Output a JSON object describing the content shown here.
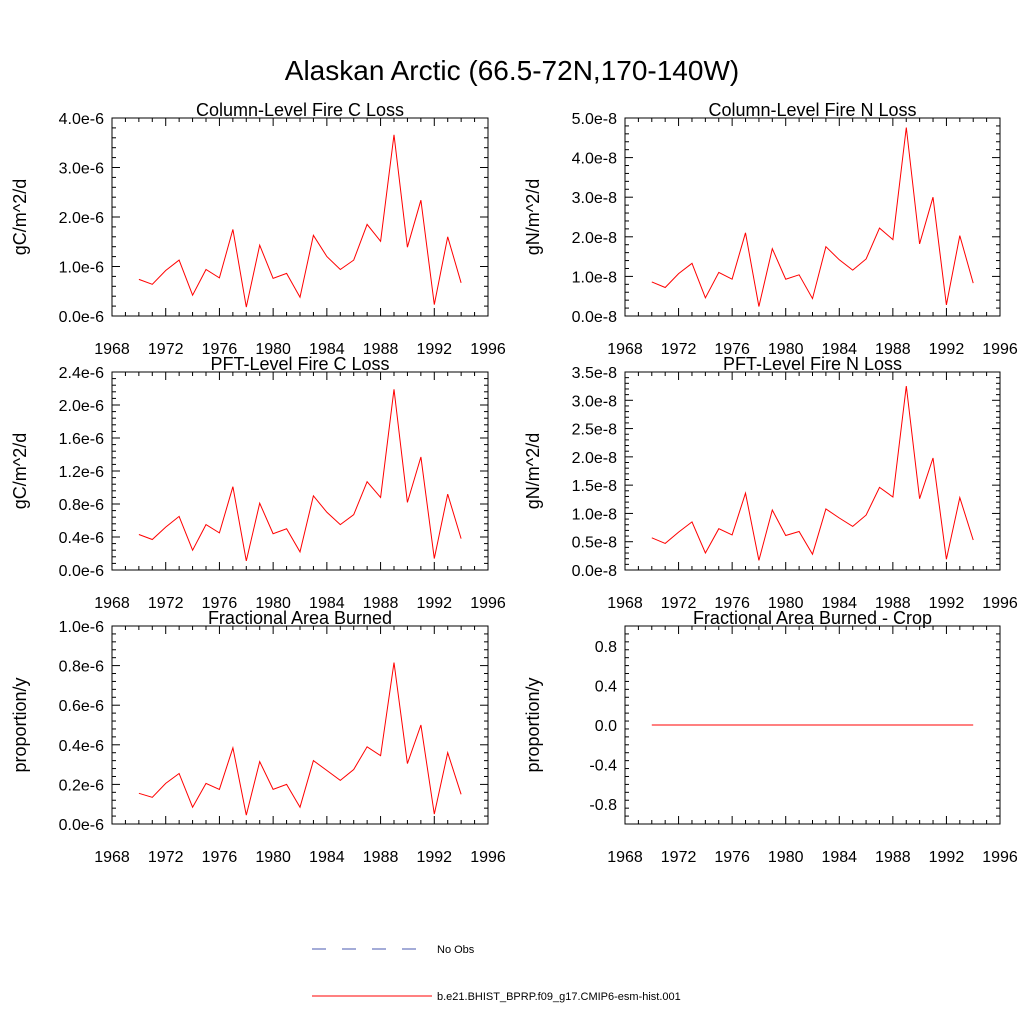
{
  "figure": {
    "title": "Alaskan Arctic (66.5-72N,170-140W)"
  },
  "colors": {
    "model_line": "#ff0000",
    "obs_line": "#4a5ab0",
    "axis": "#000000"
  },
  "chart_data": [
    {
      "type": "line",
      "title": "Column-Level Fire C Loss",
      "ylabel": "gC/m^2/d",
      "xlabel": "",
      "xlim": [
        1968,
        1996
      ],
      "ylim": [
        0,
        4e-06
      ],
      "xticks": [
        1968,
        1972,
        1976,
        1980,
        1984,
        1988,
        1992,
        1996
      ],
      "yticks": [
        0,
        1e-06,
        2e-06,
        3e-06,
        4e-06
      ],
      "ytick_labels": [
        "0.0e-6",
        "1.0e-6",
        "2.0e-6",
        "3.0e-6",
        "4.0e-6"
      ],
      "series": [
        {
          "name": "b.e21.BHIST_BPRP.f09_g17.CMIP6-esm-hist.001",
          "x": [
            1970,
            1971,
            1972,
            1973,
            1974,
            1975,
            1976,
            1977,
            1978,
            1979,
            1980,
            1981,
            1982,
            1983,
            1984,
            1985,
            1986,
            1987,
            1988,
            1989,
            1990,
            1991,
            1992,
            1993,
            1994
          ],
          "y": [
            7.4e-07,
            6.4e-07,
            9.2e-07,
            1.13e-06,
            4.2e-07,
            9.4e-07,
            7.7e-07,
            1.75e-06,
            1.8e-07,
            1.43e-06,
            7.6e-07,
            8.6e-07,
            3.8e-07,
            1.63e-06,
            1.2e-06,
            9.4e-07,
            1.13e-06,
            1.85e-06,
            1.51e-06,
            3.66e-06,
            1.39e-06,
            2.34e-06,
            2.3e-07,
            1.6e-06,
            6.7e-07
          ]
        }
      ]
    },
    {
      "type": "line",
      "title": "Column-Level Fire N Loss",
      "ylabel": "gN/m^2/d",
      "xlabel": "",
      "xlim": [
        1968,
        1996
      ],
      "ylim": [
        0,
        5e-08
      ],
      "xticks": [
        1968,
        1972,
        1976,
        1980,
        1984,
        1988,
        1992,
        1996
      ],
      "yticks": [
        0,
        1e-08,
        2e-08,
        3e-08,
        4e-08,
        5e-08
      ],
      "ytick_labels": [
        "0.0e-8",
        "1.0e-8",
        "2.0e-8",
        "3.0e-8",
        "4.0e-8",
        "5.0e-8"
      ],
      "series": [
        {
          "name": "b.e21.BHIST_BPRP.f09_g17.CMIP6-esm-hist.001",
          "x": [
            1970,
            1971,
            1972,
            1973,
            1974,
            1975,
            1976,
            1977,
            1978,
            1979,
            1980,
            1981,
            1982,
            1983,
            1984,
            1985,
            1986,
            1987,
            1988,
            1989,
            1990,
            1991,
            1992,
            1993,
            1994
          ],
          "y": [
            8.6e-09,
            7.2e-09,
            1.07e-08,
            1.33e-08,
            4.6e-09,
            1.1e-08,
            9.3e-09,
            2.1e-08,
            2.4e-09,
            1.7e-08,
            9.3e-09,
            1.04e-08,
            4.4e-09,
            1.75e-08,
            1.42e-08,
            1.16e-08,
            1.44e-08,
            2.22e-08,
            1.93e-08,
            4.76e-08,
            1.82e-08,
            3e-08,
            2.8e-09,
            2.03e-08,
            8.3e-09
          ]
        }
      ]
    },
    {
      "type": "line",
      "title": "PFT-Level Fire C Loss",
      "ylabel": "gC/m^2/d",
      "xlabel": "",
      "xlim": [
        1968,
        1996
      ],
      "ylim": [
        0,
        2.4e-06
      ],
      "xticks": [
        1968,
        1972,
        1976,
        1980,
        1984,
        1988,
        1992,
        1996
      ],
      "yticks": [
        0,
        4e-07,
        8e-07,
        1.2e-06,
        1.6e-06,
        2e-06,
        2.4e-06
      ],
      "ytick_labels": [
        "0.0e-6",
        "0.4e-6",
        "0.8e-6",
        "1.2e-6",
        "1.6e-6",
        "2.0e-6",
        "2.4e-6"
      ],
      "series": [
        {
          "name": "b.e21.BHIST_BPRP.f09_g17.CMIP6-esm-hist.001",
          "x": [
            1970,
            1971,
            1972,
            1973,
            1974,
            1975,
            1976,
            1977,
            1978,
            1979,
            1980,
            1981,
            1982,
            1983,
            1984,
            1985,
            1986,
            1987,
            1988,
            1989,
            1990,
            1991,
            1992,
            1993,
            1994
          ],
          "y": [
            4.3e-07,
            3.7e-07,
            5.2e-07,
            6.5e-07,
            2.4e-07,
            5.5e-07,
            4.5e-07,
            1.01e-06,
            1.1e-07,
            8.1e-07,
            4.4e-07,
            5e-07,
            2.2e-07,
            9e-07,
            7e-07,
            5.5e-07,
            6.7e-07,
            1.07e-06,
            8.8e-07,
            2.19e-06,
            8.2e-07,
            1.37e-06,
            1.4e-07,
            9.2e-07,
            3.8e-07
          ]
        }
      ]
    },
    {
      "type": "line",
      "title": "PFT-Level Fire N Loss",
      "ylabel": "gN/m^2/d",
      "xlabel": "",
      "xlim": [
        1968,
        1996
      ],
      "ylim": [
        0,
        3.5e-08
      ],
      "xticks": [
        1968,
        1972,
        1976,
        1980,
        1984,
        1988,
        1992,
        1996
      ],
      "yticks": [
        0,
        5e-09,
        1e-08,
        1.5e-08,
        2e-08,
        2.5e-08,
        3e-08,
        3.5e-08
      ],
      "ytick_labels": [
        "0.0e-8",
        "0.5e-8",
        "1.0e-8",
        "1.5e-8",
        "2.0e-8",
        "2.5e-8",
        "3.0e-8",
        "3.5e-8"
      ],
      "series": [
        {
          "name": "b.e21.BHIST_BPRP.f09_g17.CMIP6-esm-hist.001",
          "x": [
            1970,
            1971,
            1972,
            1973,
            1974,
            1975,
            1976,
            1977,
            1978,
            1979,
            1980,
            1981,
            1982,
            1983,
            1984,
            1985,
            1986,
            1987,
            1988,
            1989,
            1990,
            1991,
            1992,
            1993,
            1994
          ],
          "y": [
            5.7e-09,
            4.7e-09,
            6.7e-09,
            8.5e-09,
            3e-09,
            7.3e-09,
            6.2e-09,
            1.36e-08,
            1.7e-09,
            1.06e-08,
            6.1e-09,
            6.8e-09,
            2.8e-09,
            1.08e-08,
            9.2e-09,
            7.7e-09,
            9.7e-09,
            1.46e-08,
            1.29e-08,
            3.25e-08,
            1.26e-08,
            1.98e-08,
            1.9e-09,
            1.28e-08,
            5.3e-09
          ]
        }
      ]
    },
    {
      "type": "line",
      "title": "Fractional Area Burned",
      "ylabel": "proportion/y",
      "xlabel": "",
      "xlim": [
        1968,
        1996
      ],
      "ylim": [
        0,
        1e-06
      ],
      "xticks": [
        1968,
        1972,
        1976,
        1980,
        1984,
        1988,
        1992,
        1996
      ],
      "yticks": [
        0,
        2e-07,
        4e-07,
        6e-07,
        8e-07,
        1e-06
      ],
      "ytick_labels": [
        "0.0e-6",
        "0.2e-6",
        "0.4e-6",
        "0.6e-6",
        "0.8e-6",
        "1.0e-6"
      ],
      "series": [
        {
          "name": "b.e21.BHIST_BPRP.f09_g17.CMIP6-esm-hist.001",
          "x": [
            1970,
            1971,
            1972,
            1973,
            1974,
            1975,
            1976,
            1977,
            1978,
            1979,
            1980,
            1981,
            1982,
            1983,
            1984,
            1985,
            1986,
            1987,
            1988,
            1989,
            1990,
            1991,
            1992,
            1993,
            1994
          ],
          "y": [
            1.55e-07,
            1.35e-07,
            2.05e-07,
            2.55e-07,
            8.5e-08,
            2.05e-07,
            1.75e-07,
            3.85e-07,
            4.5e-08,
            3.15e-07,
            1.75e-07,
            2e-07,
            8.5e-08,
            3.2e-07,
            2.7e-07,
            2.2e-07,
            2.75e-07,
            3.9e-07,
            3.45e-07,
            8.15e-07,
            3.05e-07,
            5e-07,
            5e-08,
            3.6e-07,
            1.5e-07
          ]
        }
      ]
    },
    {
      "type": "line",
      "title": "Fractional Area Burned - Crop",
      "ylabel": "proportion/y",
      "xlabel": "",
      "xlim": [
        1968,
        1996
      ],
      "ylim": [
        -1.0,
        1.0
      ],
      "xticks": [
        1968,
        1972,
        1976,
        1980,
        1984,
        1988,
        1992,
        1996
      ],
      "yticks": [
        -0.8,
        -0.4,
        0.0,
        0.4,
        0.8
      ],
      "ytick_labels": [
        "-0.8",
        "-0.4",
        "0.0",
        "0.4",
        "0.8"
      ],
      "series": [
        {
          "name": "b.e21.BHIST_BPRP.f09_g17.CMIP6-esm-hist.001",
          "x": [
            1970,
            1971,
            1972,
            1973,
            1974,
            1975,
            1976,
            1977,
            1978,
            1979,
            1980,
            1981,
            1982,
            1983,
            1984,
            1985,
            1986,
            1987,
            1988,
            1989,
            1990,
            1991,
            1992,
            1993,
            1994
          ],
          "y": [
            0,
            0,
            0,
            0,
            0,
            0,
            0,
            0,
            0,
            0,
            0,
            0,
            0,
            0,
            0,
            0,
            0,
            0,
            0,
            0,
            0,
            0,
            0,
            0,
            0
          ]
        }
      ]
    }
  ],
  "legend": {
    "placement": "bottom-center",
    "items": [
      {
        "label": "No Obs",
        "style": "dashed",
        "color": "#4a5ab0"
      },
      {
        "label": "b.e21.BHIST_BPRP.f09_g17.CMIP6-esm-hist.001",
        "style": "solid",
        "color": "#ff0000"
      }
    ]
  }
}
